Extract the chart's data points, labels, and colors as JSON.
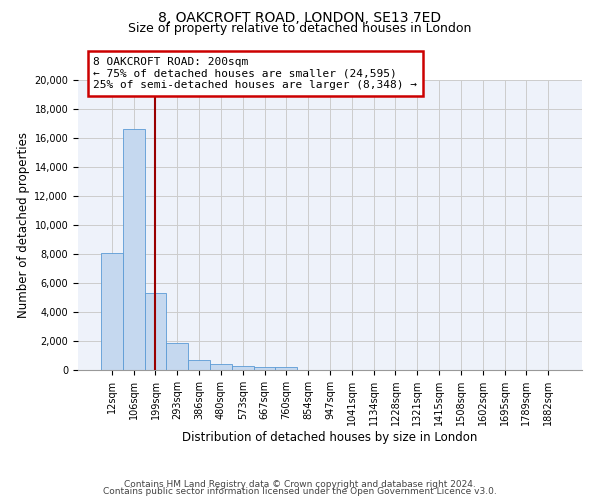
{
  "title": "8, OAKCROFT ROAD, LONDON, SE13 7ED",
  "subtitle": "Size of property relative to detached houses in London",
  "xlabel": "Distribution of detached houses by size in London",
  "ylabel": "Number of detached properties",
  "bar_values": [
    8100,
    16600,
    5300,
    1850,
    700,
    380,
    300,
    220,
    180,
    0,
    0,
    0,
    0,
    0,
    0,
    0,
    0,
    0,
    0,
    0,
    0
  ],
  "categories": [
    "12sqm",
    "106sqm",
    "199sqm",
    "293sqm",
    "386sqm",
    "480sqm",
    "573sqm",
    "667sqm",
    "760sqm",
    "854sqm",
    "947sqm",
    "1041sqm",
    "1134sqm",
    "1228sqm",
    "1321sqm",
    "1415sqm",
    "1508sqm",
    "1602sqm",
    "1695sqm",
    "1789sqm",
    "1882sqm"
  ],
  "bar_color": "#c5d8ef",
  "bar_edge_color": "#5b9bd5",
  "vline_x": 2.0,
  "vline_color": "#990000",
  "annotation_line1": "8 OAKCROFT ROAD: 200sqm",
  "annotation_line2": "← 75% of detached houses are smaller (24,595)",
  "annotation_line3": "25% of semi-detached houses are larger (8,348) →",
  "annotation_box_color": "#cc0000",
  "annotation_box_bg": "#ffffff",
  "ylim": [
    0,
    20000
  ],
  "yticks": [
    0,
    2000,
    4000,
    6000,
    8000,
    10000,
    12000,
    14000,
    16000,
    18000,
    20000
  ],
  "grid_color": "#cccccc",
  "bg_color": "#eef2fa",
  "footer_line1": "Contains HM Land Registry data © Crown copyright and database right 2024.",
  "footer_line2": "Contains public sector information licensed under the Open Government Licence v3.0.",
  "title_fontsize": 10,
  "subtitle_fontsize": 9,
  "axis_label_fontsize": 8.5,
  "tick_fontsize": 7,
  "annotation_fontsize": 8,
  "footer_fontsize": 6.5
}
